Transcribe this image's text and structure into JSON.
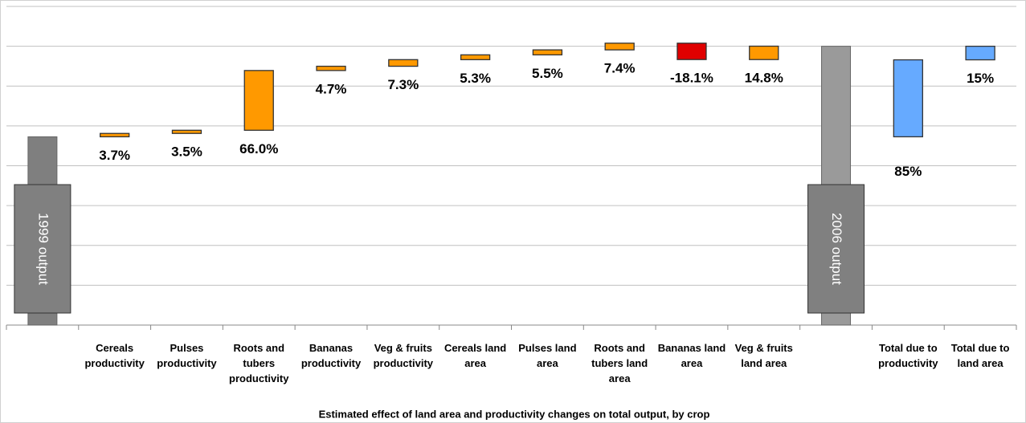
{
  "chart_data": {
    "type": "waterfall",
    "x_label": "Estimated effect of land area and productivity changes on total output, by crop",
    "categories": [
      null,
      "Cereals productivity",
      "Pulses productivity",
      "Roots and tubers productivity",
      "Bananas productivity",
      "Veg & fruits productivity",
      "Cereals land area",
      "Pulses land area",
      "Roots and tubers land area",
      "Bananas land area",
      "Veg & fruits land area",
      null,
      "Total due to productivity",
      "Total due to land area"
    ],
    "values": [
      208,
      3.7,
      3.5,
      66.0,
      4.7,
      7.3,
      5.3,
      5.5,
      7.4,
      -18.1,
      14.8,
      308,
      85,
      15
    ],
    "value_labels": [
      null,
      "3.7%",
      "3.5%",
      "66.0%",
      "4.7%",
      "7.3%",
      "5.3%",
      "5.5%",
      "7.4%",
      "-18.1%",
      "14.8%",
      null,
      "85%",
      "15%"
    ],
    "measure": [
      "total",
      "relative",
      "relative",
      "relative",
      "relative",
      "relative",
      "relative",
      "relative",
      "relative",
      "relative",
      "relative",
      "total",
      "relative",
      "relative"
    ],
    "total_labels": [
      "1999 output",
      "2006 output"
    ],
    "colors": [
      "#7f7f7f",
      "#ff9900",
      "#ff9900",
      "#ff9900",
      "#ff9900",
      "#ff9900",
      "#ff9900",
      "#ff9900",
      "#ff9900",
      "#e00000",
      "#ff9900",
      "#9a9a9a",
      "#66aaff",
      "#66aaff"
    ],
    "ylim": [
      0,
      352
    ],
    "yticks": [
      0,
      44,
      88,
      132,
      176,
      220,
      264,
      308,
      352
    ],
    "ytick_labels": false,
    "grid": true
  }
}
